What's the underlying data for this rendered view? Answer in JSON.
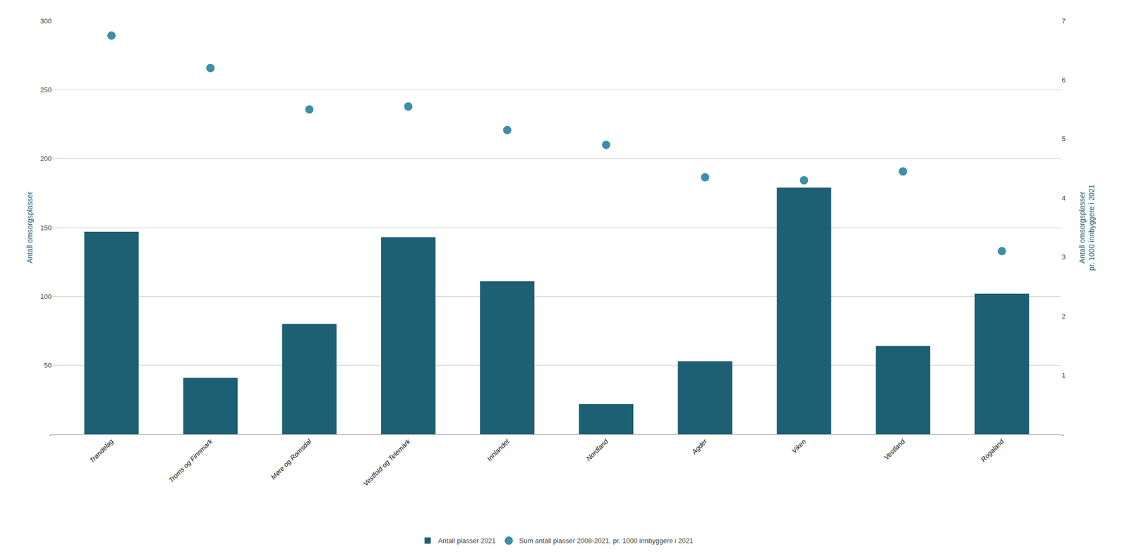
{
  "chart_data": {
    "type": "bar",
    "categories": [
      "Trøndelag",
      "Troms og Finnmark",
      "Møre og Romsdal",
      "Vestfold og Telemark",
      "Innlandet",
      "Nordland",
      "Agder",
      "Viken",
      "Vestland",
      "Rogaland"
    ],
    "ylabel": "Antall omsorgsplasser",
    "y2label": "Antall omsorgsplasser\npr. 1000 innbyggere i 2021",
    "ylim": [
      0,
      300
    ],
    "yticks": [
      {
        "value": 0,
        "label": "-"
      },
      50,
      100,
      150,
      200,
      250,
      300
    ],
    "y2lim": [
      0,
      7
    ],
    "y2ticks": [
      {
        "value": 0,
        "label": "-"
      },
      1,
      2,
      3,
      4,
      5,
      6,
      7
    ],
    "grid": true,
    "legend": "bottom",
    "series": [
      {
        "name": "Antall plasser 2021",
        "type": "bar",
        "color": "#1d5f73",
        "values": [
          147,
          41,
          80,
          143,
          111,
          22,
          53,
          179,
          64,
          102
        ]
      },
      {
        "name": "Sum antall plasser 2008-2021. pr. 1000 innbyggere i 2021",
        "type": "scatter",
        "marker": "circle",
        "color": "#3d8fa8",
        "axis": "y2",
        "values": [
          6.75,
          6.2,
          5.5,
          5.55,
          5.15,
          4.9,
          4.35,
          4.3,
          4.45,
          3.1
        ]
      }
    ]
  }
}
